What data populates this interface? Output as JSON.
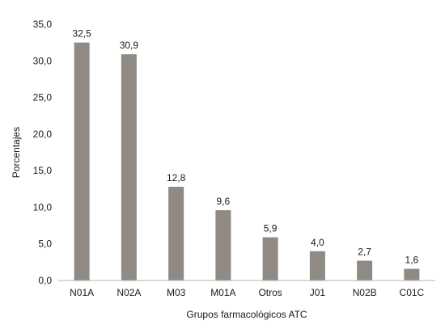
{
  "chart_data": {
    "type": "bar",
    "categories": [
      "N01A",
      "N02A",
      "M03",
      "M01A",
      "Otros",
      "J01",
      "N02B",
      "C01C"
    ],
    "values": [
      32.5,
      30.9,
      12.8,
      9.6,
      5.9,
      4.0,
      2.7,
      1.6
    ],
    "data_labels": [
      "32,5",
      "30,9",
      "12,8",
      "9,6",
      "5,9",
      "4,0",
      "2,7",
      "1,6"
    ],
    "title": "",
    "xlabel": "Grupos farmacológicos ATC",
    "ylabel": "Porcentajes",
    "ylim": [
      0,
      35
    ],
    "yticks": [
      0,
      5,
      10,
      15,
      20,
      25,
      30,
      35
    ],
    "ytick_labels": [
      "0,0",
      "5,0",
      "10,0",
      "15,0",
      "20,0",
      "25,0",
      "30,0",
      "35,0"
    ],
    "grid": false,
    "legend": false,
    "colors": {
      "bar": "#8f8a83",
      "axis": "#b5b5b5",
      "text": "#1a1a1a"
    }
  }
}
